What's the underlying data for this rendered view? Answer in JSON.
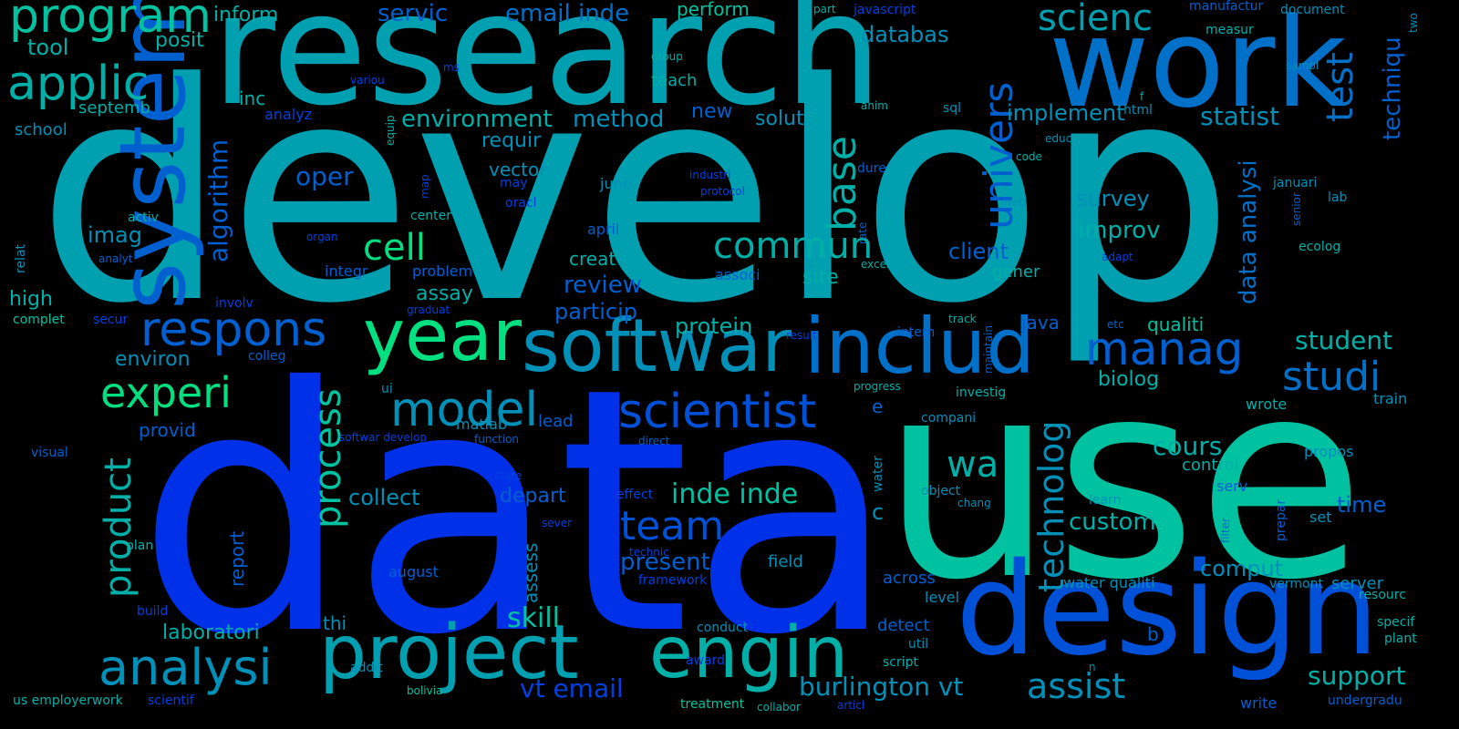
{
  "palette": [
    "#00c2a0",
    "#00a0b0",
    "#0090b8",
    "#0070c8",
    "#0050d8",
    "#0030e8",
    "#00e080",
    "#0040e0",
    "#00b0a8",
    "#0060d0"
  ],
  "words": [
    {
      "text": "develop"
    },
    {
      "text": "data"
    },
    {
      "text": "use"
    },
    {
      "text": "research"
    },
    {
      "text": "work"
    },
    {
      "text": "design"
    },
    {
      "text": "system"
    },
    {
      "text": "softwar"
    },
    {
      "text": "includ"
    },
    {
      "text": "project"
    },
    {
      "text": "engin"
    },
    {
      "text": "year"
    },
    {
      "text": "analysi"
    },
    {
      "text": "program"
    },
    {
      "text": "applic"
    },
    {
      "text": "respons"
    },
    {
      "text": "model"
    },
    {
      "text": "scientist"
    },
    {
      "text": "manag"
    },
    {
      "text": "experi"
    },
    {
      "text": "team"
    },
    {
      "text": "univers"
    },
    {
      "text": "studi"
    },
    {
      "text": "base"
    },
    {
      "text": "test"
    },
    {
      "text": "scienc"
    },
    {
      "text": "product"
    },
    {
      "text": "process"
    },
    {
      "text": "commun"
    },
    {
      "text": "technolog"
    },
    {
      "text": "wa"
    },
    {
      "text": "cell"
    },
    {
      "text": "assist"
    },
    {
      "text": "burlington vt"
    },
    {
      "text": "vt email"
    },
    {
      "text": "skill"
    },
    {
      "text": "support"
    },
    {
      "text": "inde inde"
    },
    {
      "text": "environment"
    },
    {
      "text": "method"
    },
    {
      "text": "statist"
    },
    {
      "text": "servic"
    },
    {
      "text": "email inde"
    },
    {
      "text": "data analysi"
    },
    {
      "text": "algorithm"
    },
    {
      "text": "oper"
    },
    {
      "text": "techniqu"
    },
    {
      "text": "databas"
    },
    {
      "text": "implement"
    },
    {
      "text": "student"
    },
    {
      "text": "custom"
    },
    {
      "text": "cours"
    },
    {
      "text": "present"
    },
    {
      "text": "improv"
    },
    {
      "text": "survey"
    },
    {
      "text": "client"
    },
    {
      "text": "review"
    },
    {
      "text": "particip"
    },
    {
      "text": "protein"
    },
    {
      "text": "collect"
    },
    {
      "text": "depart"
    },
    {
      "text": "laboratori"
    },
    {
      "text": "time"
    },
    {
      "text": "comput"
    },
    {
      "text": "imag"
    },
    {
      "text": "environ"
    },
    {
      "text": "inform"
    },
    {
      "text": "tool"
    },
    {
      "text": "posit"
    },
    {
      "text": "perform"
    },
    {
      "text": "requir"
    },
    {
      "text": "assay"
    },
    {
      "text": "biolog"
    },
    {
      "text": "qualiti"
    },
    {
      "text": "java"
    },
    {
      "text": "solut"
    },
    {
      "text": "new"
    },
    {
      "text": "vector"
    },
    {
      "text": "site"
    },
    {
      "text": "creat"
    },
    {
      "text": "control"
    },
    {
      "text": "gener"
    },
    {
      "text": "across"
    },
    {
      "text": "assess"
    },
    {
      "text": "report"
    },
    {
      "text": "high"
    },
    {
      "text": "school"
    },
    {
      "text": "septemb"
    },
    {
      "text": "inc"
    },
    {
      "text": "teach"
    },
    {
      "text": "provid"
    },
    {
      "text": "thi"
    },
    {
      "text": "detect"
    },
    {
      "text": "field"
    },
    {
      "text": "server"
    },
    {
      "text": "propos"
    },
    {
      "text": "train"
    },
    {
      "text": "wrote"
    },
    {
      "text": "lead"
    },
    {
      "text": "august"
    },
    {
      "text": "level"
    },
    {
      "text": "water qualiti"
    },
    {
      "text": "manufactur"
    },
    {
      "text": "measur"
    },
    {
      "text": "document"
    },
    {
      "text": "javascript"
    },
    {
      "text": "analyz"
    },
    {
      "text": "june"
    },
    {
      "text": "april"
    },
    {
      "text": "integr"
    },
    {
      "text": "problem"
    },
    {
      "text": "associ"
    },
    {
      "text": "matlab"
    },
    {
      "text": "ui"
    },
    {
      "text": "investig"
    },
    {
      "text": "compani"
    },
    {
      "text": "intern"
    },
    {
      "text": "activ"
    },
    {
      "text": "center"
    },
    {
      "text": "relat"
    },
    {
      "text": "complet"
    },
    {
      "text": "involv"
    },
    {
      "text": "secur"
    },
    {
      "text": "colleg"
    },
    {
      "text": "visual"
    },
    {
      "text": "build"
    },
    {
      "text": "plan"
    },
    {
      "text": "us employerwork"
    },
    {
      "text": "scientif"
    },
    {
      "text": "bolivia"
    },
    {
      "text": "addit"
    },
    {
      "text": "treatment"
    },
    {
      "text": "collabor"
    },
    {
      "text": "articl"
    },
    {
      "text": "award"
    },
    {
      "text": "conduct"
    },
    {
      "text": "util"
    },
    {
      "text": "script"
    },
    {
      "text": "framework"
    },
    {
      "text": "technic"
    },
    {
      "text": "sever"
    },
    {
      "text": "effect"
    },
    {
      "text": "state"
    },
    {
      "text": "function"
    },
    {
      "text": "direct"
    },
    {
      "text": "softwar develop"
    },
    {
      "text": "progress"
    },
    {
      "text": "result"
    },
    {
      "text": "graduat"
    },
    {
      "text": "organ"
    },
    {
      "text": "analyt"
    },
    {
      "text": "map"
    },
    {
      "text": "equip"
    },
    {
      "text": "variou"
    },
    {
      "text": "group"
    },
    {
      "text": "ms"
    },
    {
      "text": "part"
    },
    {
      "text": "may"
    },
    {
      "text": "oracl"
    },
    {
      "text": "industri"
    },
    {
      "text": "protocol"
    },
    {
      "text": "dure"
    },
    {
      "text": "anim"
    },
    {
      "text": "sql"
    },
    {
      "text": "html"
    },
    {
      "text": "educ"
    },
    {
      "text": "code"
    },
    {
      "text": "web"
    },
    {
      "text": "januari"
    },
    {
      "text": "lab"
    },
    {
      "text": "sampl"
    },
    {
      "text": "f"
    },
    {
      "text": "excel"
    },
    {
      "text": "adapt"
    },
    {
      "text": "ecolog"
    },
    {
      "text": "senior"
    },
    {
      "text": "rate"
    },
    {
      "text": "track"
    },
    {
      "text": "maintain"
    },
    {
      "text": "etc"
    },
    {
      "text": "e"
    },
    {
      "text": "c"
    },
    {
      "text": "water"
    },
    {
      "text": "object"
    },
    {
      "text": "chang"
    },
    {
      "text": "learn"
    },
    {
      "text": "serv"
    },
    {
      "text": "filter"
    },
    {
      "text": "prepar"
    },
    {
      "text": "set"
    },
    {
      "text": "vermont"
    },
    {
      "text": "resourc"
    },
    {
      "text": "specif"
    },
    {
      "text": "plant"
    },
    {
      "text": "undergradu"
    },
    {
      "text": "write"
    },
    {
      "text": "b"
    },
    {
      "text": "n"
    },
    {
      "text": "two"
    }
  ]
}
